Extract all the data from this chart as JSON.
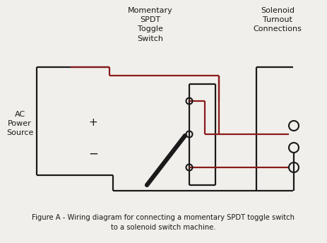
{
  "fig_width": 4.63,
  "fig_height": 3.44,
  "dpi": 100,
  "bg_color": "#f0efeb",
  "line_color": "#1a1a1a",
  "red_color": "#8b1a1a",
  "label_momentary": "Momentary\nSPDT\nToggle\nSwitch",
  "label_solenoid": "Solenoid\nTurnout\nConnections",
  "label_source": "AC\nPower\nSource",
  "label_plus": "+",
  "label_minus": "−",
  "caption_line1": "Figure A - Wiring diagram for connecting a momentary SPDT toggle switch",
  "caption_line2": "to a solenoid switch machine."
}
